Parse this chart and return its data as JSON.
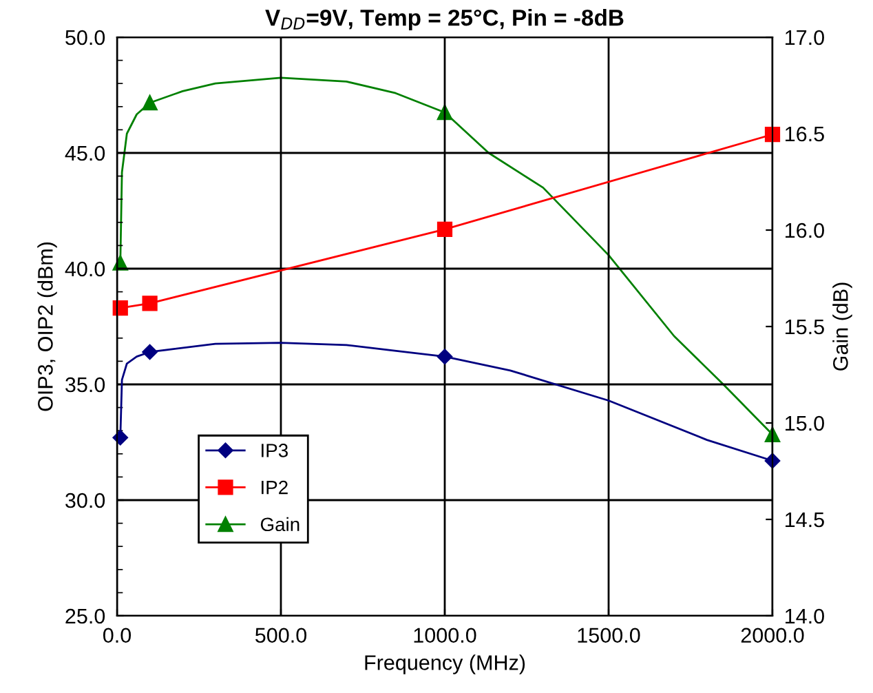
{
  "chart_data": {
    "type": "line",
    "title": "V$_{DD}$=9V, Temp = 25°C, Pin = -8dB",
    "xlabel": "Frequency (MHz)",
    "ylabel": "OIP3, OIP2 (dBm)",
    "y2label": "Gain (dB)",
    "series": [
      {
        "color": "#000080",
        "marker": "none",
        "x": [
          10,
          15,
          30,
          60,
          100,
          300,
          500,
          700,
          1000,
          1200,
          1500,
          1800,
          2000
        ],
        "values": [
          32.7,
          35.2,
          35.9,
          36.2,
          36.4,
          36.75,
          36.8,
          36.7,
          36.2,
          35.6,
          34.3,
          32.6,
          31.7
        ]
      },
      {
        "color": "#ff0000",
        "marker": "none",
        "x": [
          10,
          100,
          1000,
          2000
        ],
        "values": [
          38.3,
          38.5,
          41.7,
          45.8
        ]
      },
      {
        "color": "#008000",
        "marker": "none",
        "axis": "y2",
        "x": [
          10,
          15,
          30,
          60,
          100,
          200,
          300,
          500,
          700,
          850,
          1000,
          1134,
          1300,
          1500,
          1700,
          1850,
          2000
        ],
        "values": [
          15.83,
          16.3,
          16.5,
          16.6,
          16.66,
          16.72,
          16.76,
          16.79,
          16.77,
          16.71,
          16.61,
          16.4,
          16.22,
          15.87,
          15.45,
          15.2,
          14.94
        ]
      },
      {
        "name": "IP3",
        "type": "scatter",
        "color": "#000080",
        "marker": "diamond",
        "x": [
          10,
          100,
          1000,
          2000
        ],
        "values": [
          32.7,
          36.4,
          36.2,
          31.7
        ]
      },
      {
        "name": "IP2",
        "type": "scatter",
        "color": "#ff0000",
        "marker": "square",
        "x": [
          10,
          100,
          1000,
          2000
        ],
        "values": [
          38.3,
          38.5,
          41.7,
          45.8
        ]
      },
      {
        "name": "Gain",
        "type": "scatter",
        "color": "#008000",
        "marker": "triangle",
        "axis": "y2",
        "x": [
          10,
          100,
          1000,
          2000
        ],
        "values": [
          15.83,
          16.66,
          16.61,
          14.94
        ]
      }
    ],
    "xlim": [
      0,
      2000
    ],
    "xticks": [
      {
        "value": 0,
        "label": "0.0"
      },
      {
        "value": 500,
        "label": "500.0"
      },
      {
        "value": 1000,
        "label": "1000.0"
      },
      {
        "value": 1500,
        "label": "1500.0"
      },
      {
        "value": 2000,
        "label": "2000.0"
      }
    ],
    "ylim": [
      25,
      50
    ],
    "yticks": [
      {
        "value": 25,
        "label": "25.0"
      },
      {
        "value": 30,
        "label": "30.0"
      },
      {
        "value": 35,
        "label": "35.0"
      },
      {
        "value": 40,
        "label": "40.0"
      },
      {
        "value": 45,
        "label": "45.0"
      },
      {
        "value": 50,
        "label": "50.0"
      }
    ],
    "y2lim": [
      14,
      17
    ],
    "y2ticks": [
      {
        "value": 14,
        "label": "14.0"
      },
      {
        "value": 14.5,
        "label": "14.5"
      },
      {
        "value": 15,
        "label": "15.0"
      },
      {
        "value": 15.5,
        "label": "15.5"
      },
      {
        "value": 16,
        "label": "16.0"
      },
      {
        "value": 16.5,
        "label": "16.5"
      },
      {
        "value": 17,
        "label": "17.0"
      }
    ],
    "grid": true,
    "legend": "bottom left",
    "line_style": "solid"
  }
}
